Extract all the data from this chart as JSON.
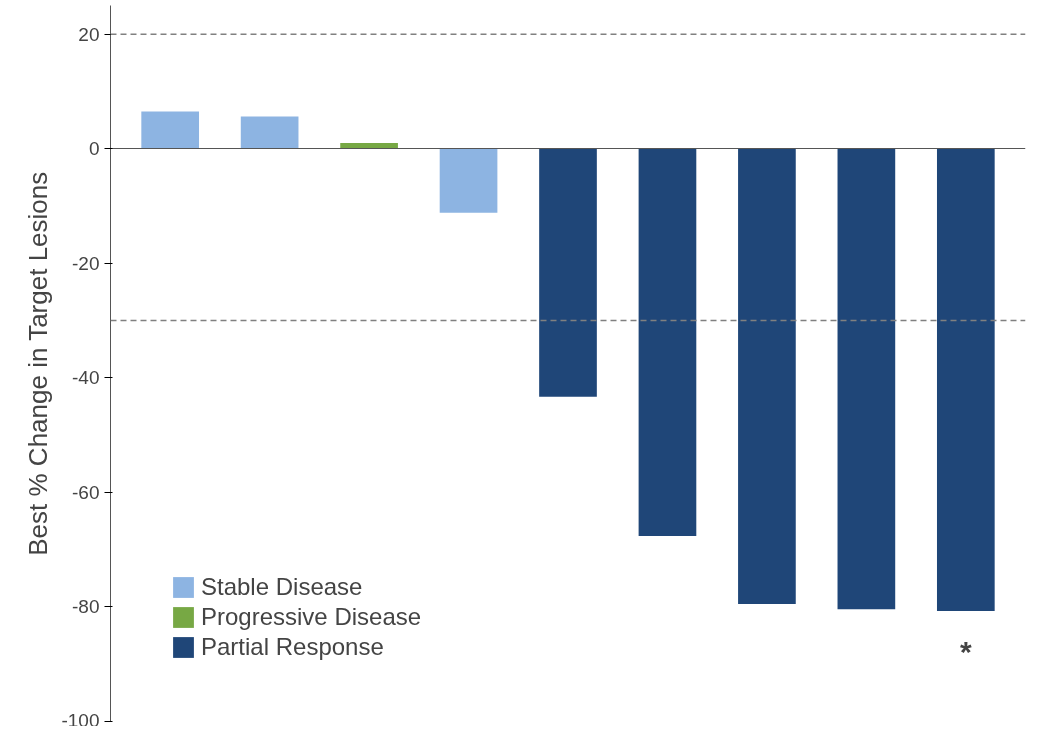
{
  "chart_data": {
    "type": "bar",
    "ylabel": "Best % Change in Target Lesions",
    "categories": [
      null,
      null,
      null,
      null,
      null,
      null,
      null,
      null,
      null
    ],
    "series": [
      {
        "name": "Stable Disease",
        "color": "#8db4e2",
        "values": [
          6.5,
          5.6,
          null,
          -11.2,
          null,
          null,
          null,
          null,
          null
        ]
      },
      {
        "name": "Progressive Disease",
        "color": "#77a844",
        "values": [
          null,
          null,
          1.0,
          null,
          null,
          null,
          null,
          null,
          null
        ]
      },
      {
        "name": "Partial Response",
        "color": "#1f4678",
        "values": [
          null,
          null,
          null,
          null,
          -43.3,
          -67.6,
          -79.5,
          -80.4,
          -80.7
        ]
      }
    ],
    "ylim": [
      -100,
      25
    ],
    "yticks": [
      -100,
      -80,
      -60,
      -40,
      -20,
      0,
      20
    ],
    "ref_lines": [
      {
        "axis": "y",
        "value": 20,
        "color": "#808080",
        "line_style": "dashed"
      },
      {
        "axis": "y",
        "value": -30,
        "color": "#808080",
        "line_style": "dashed"
      }
    ],
    "annotations": [
      "*"
    ],
    "legend": "bottom left",
    "grid": false
  }
}
